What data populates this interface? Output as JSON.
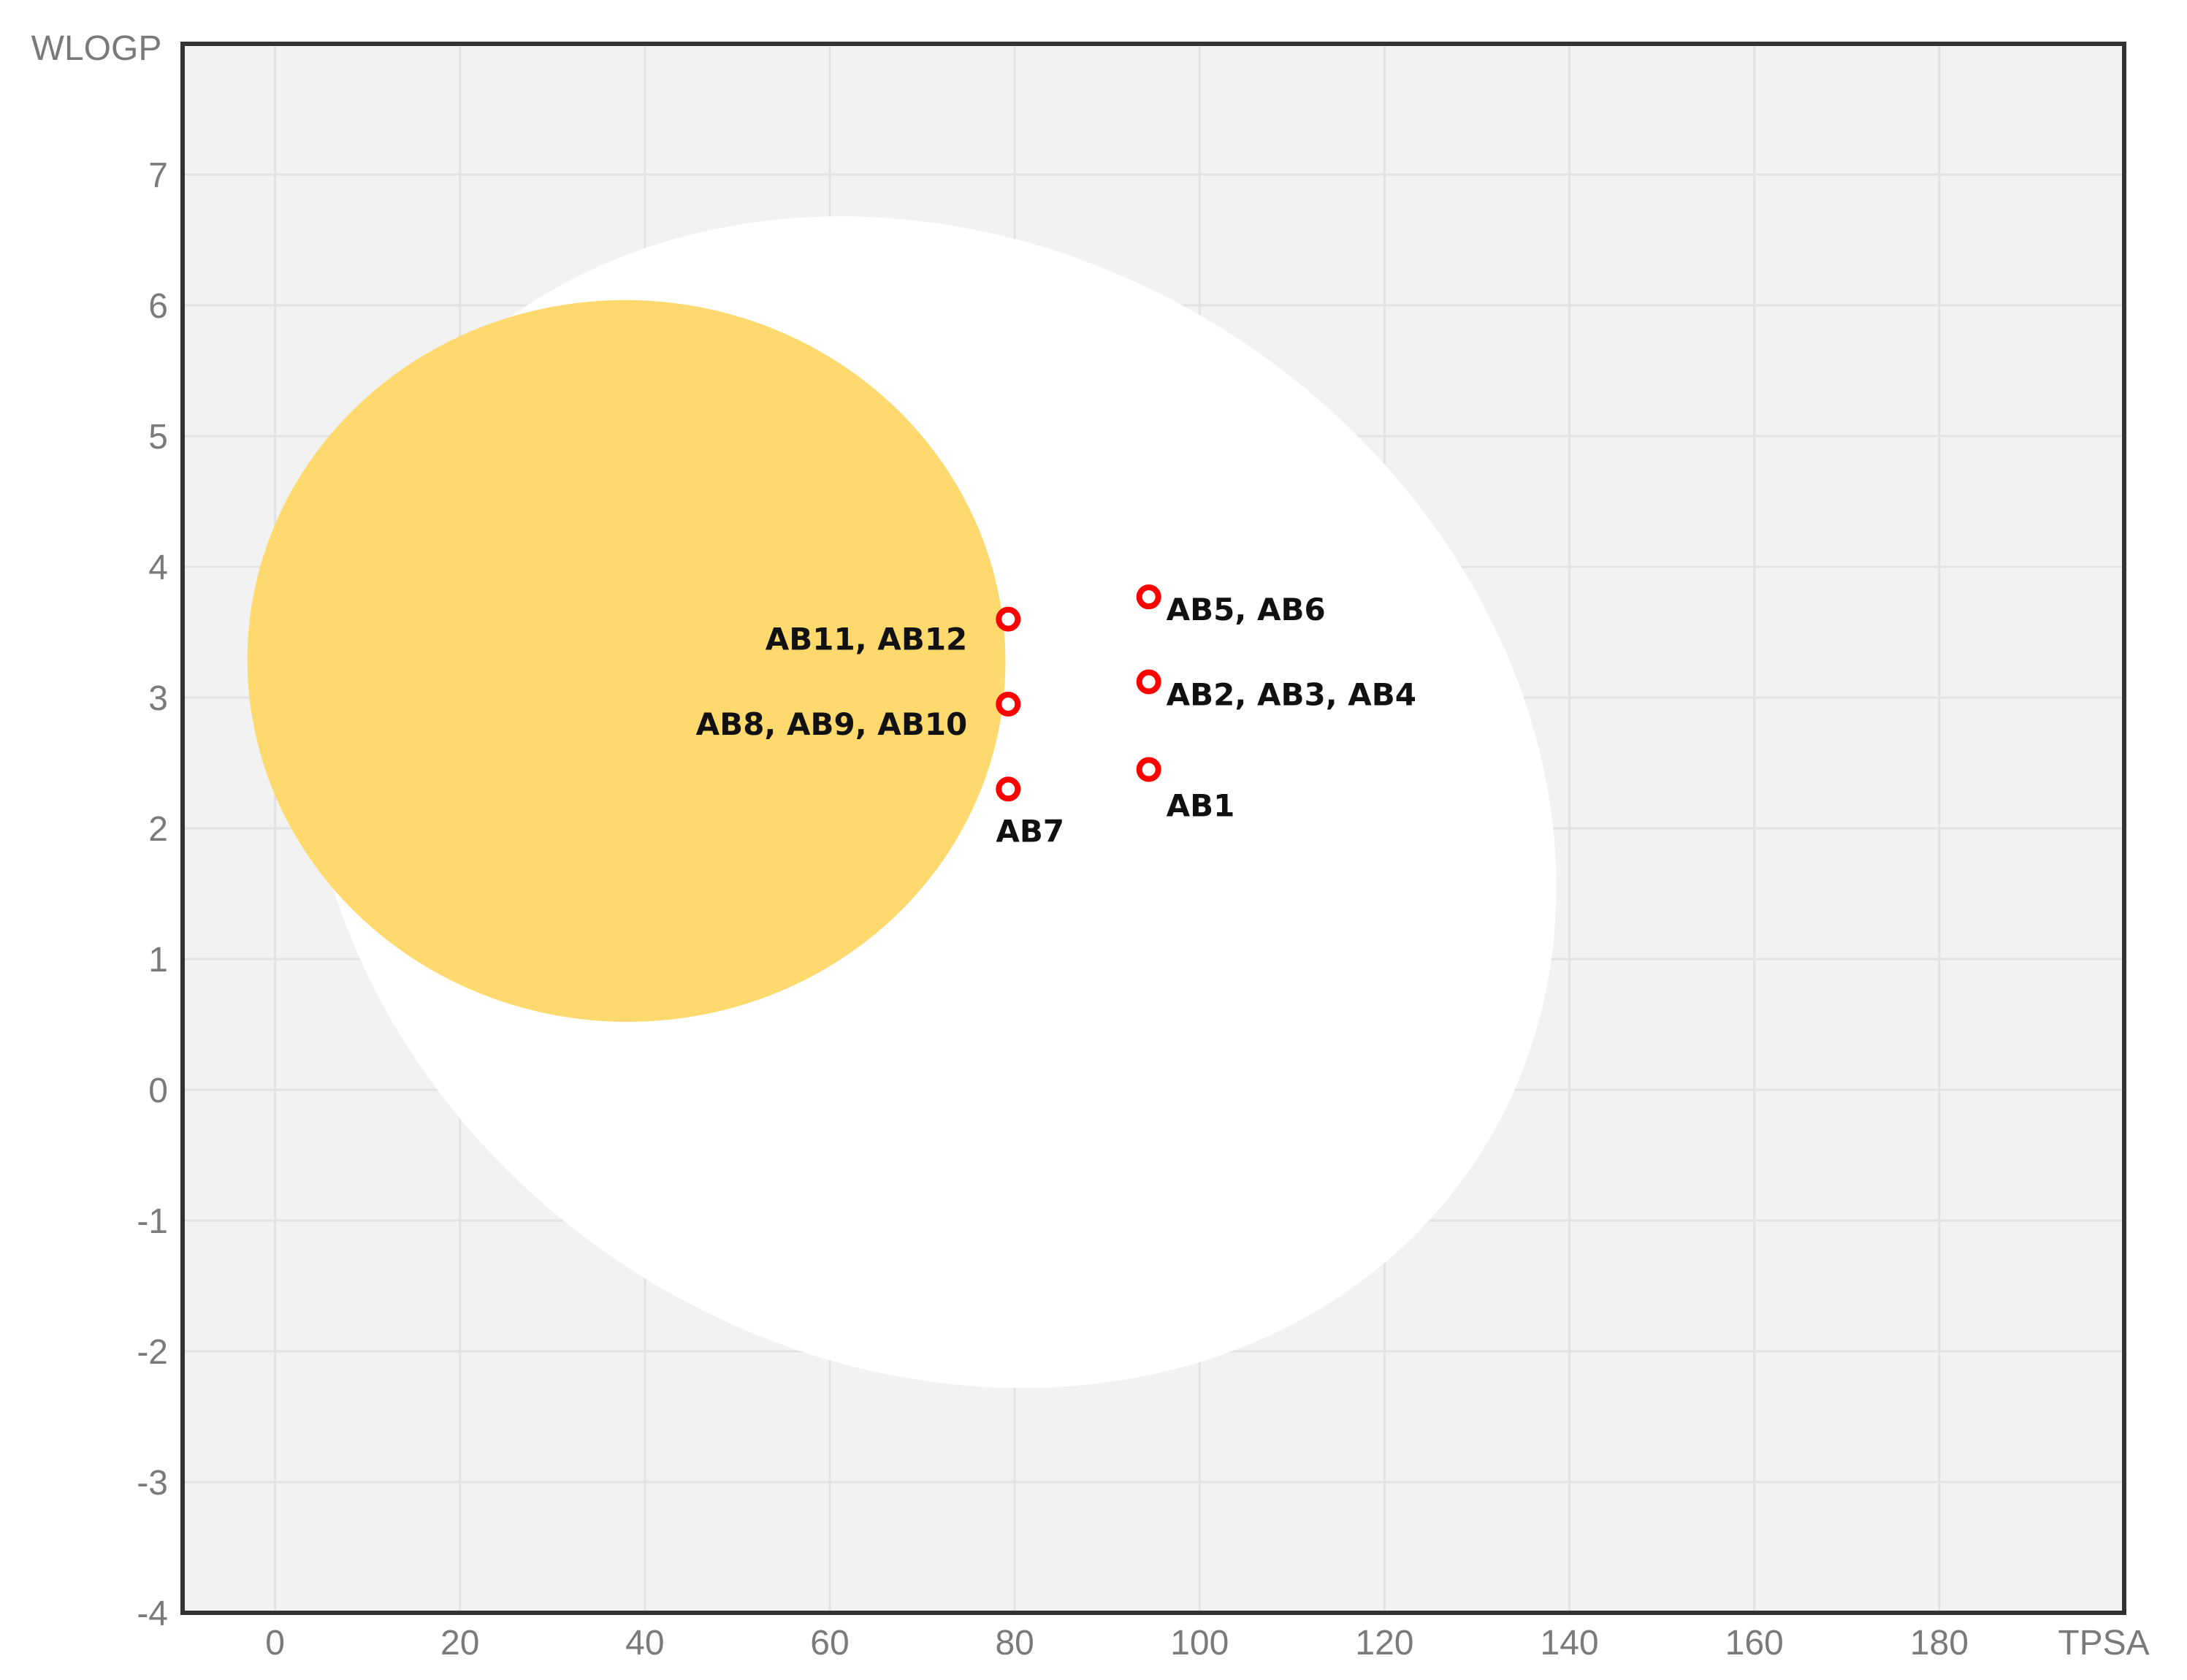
{
  "chart_data": {
    "type": "scatter",
    "xlabel": "TPSA",
    "ylabel": "WLOGP",
    "xlim": [
      -10,
      200
    ],
    "ylim": [
      -4,
      8
    ],
    "xticks": [
      0,
      20,
      40,
      60,
      80,
      100,
      120,
      140,
      160,
      180
    ],
    "yticks": [
      -4,
      -3,
      -2,
      -1,
      0,
      1,
      2,
      3,
      4,
      5,
      6,
      7
    ],
    "grid": true,
    "regions": [
      {
        "id": "white-region",
        "shape": "ellipse",
        "cx": 71,
        "cy": 2.2,
        "rx": 70.5,
        "ry": 4.25,
        "rotate": 33,
        "color": "#ffffff"
      },
      {
        "id": "yolk-region",
        "shape": "ellipse",
        "cx": 38,
        "cy": 3.28,
        "rx": 41,
        "ry": 2.76,
        "rotate": 2,
        "color": "#fdd96e"
      }
    ],
    "points": [
      {
        "x": 79.3,
        "y": 3.6,
        "label": "AB11, AB12",
        "label_pos": "left"
      },
      {
        "x": 94.5,
        "y": 3.77,
        "label": "AB5, AB6",
        "label_pos": "right"
      },
      {
        "x": 79.3,
        "y": 2.95,
        "label": "AB8, AB9, AB10",
        "label_pos": "left"
      },
      {
        "x": 94.5,
        "y": 3.12,
        "label": "AB2, AB3, AB4",
        "label_pos": "right"
      },
      {
        "x": 79.3,
        "y": 2.3,
        "label": "AB7",
        "label_pos": "below"
      },
      {
        "x": 94.5,
        "y": 2.45,
        "label": "AB1",
        "label_pos": "below-right"
      }
    ],
    "colors": {
      "plot_bg": "#f2f2f2",
      "grid": "#e2e2e2",
      "border": "#333333",
      "point_stroke": "#ff0000",
      "point_fill": "#ffffff"
    }
  }
}
